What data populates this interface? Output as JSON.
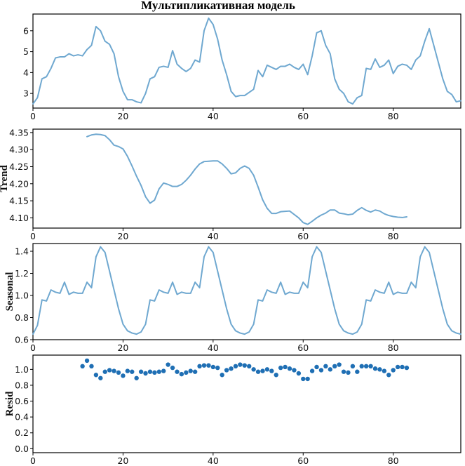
{
  "chart_data": {
    "title": "Мультипликативная модель",
    "type": "line",
    "shared_xlim": [
      0,
      95
    ],
    "xticks": [
      0,
      20,
      40,
      60,
      80
    ],
    "line_color": "#6fa8d0",
    "marker_color": "#1f6fb4",
    "panels": [
      {
        "key": "observed",
        "type": "line",
        "ylabel": "",
        "ylim": [
          2.3,
          6.8
        ],
        "yticks": [
          3,
          4,
          5,
          6
        ],
        "x": [
          0,
          1,
          2,
          3,
          4,
          5,
          6,
          7,
          8,
          9,
          10,
          11,
          12,
          13,
          14,
          15,
          16,
          17,
          18,
          19,
          20,
          21,
          22,
          23,
          24,
          25,
          26,
          27,
          28,
          29,
          30,
          31,
          32,
          33,
          34,
          35,
          36,
          37,
          38,
          39,
          40,
          41,
          42,
          43,
          44,
          45,
          46,
          47,
          48,
          49,
          50,
          51,
          52,
          53,
          54,
          55,
          56,
          57,
          58,
          59,
          60,
          61,
          62,
          63,
          64,
          65,
          66,
          67,
          68,
          69,
          70,
          71,
          72,
          73,
          74,
          75,
          76,
          77,
          78,
          79,
          80,
          81,
          82,
          83,
          84,
          85,
          86,
          87,
          88,
          89,
          90,
          91,
          92,
          93,
          94,
          95
        ],
        "values": [
          2.5,
          2.8,
          3.7,
          3.8,
          4.2,
          4.7,
          4.75,
          4.75,
          4.9,
          4.8,
          4.85,
          4.8,
          5.1,
          5.3,
          6.2,
          6.0,
          5.5,
          5.35,
          4.9,
          3.8,
          3.1,
          2.7,
          2.7,
          2.6,
          2.55,
          3.0,
          3.7,
          3.8,
          4.25,
          4.3,
          4.25,
          5.05,
          4.4,
          4.2,
          4.05,
          4.2,
          4.6,
          4.5,
          6.0,
          6.6,
          6.3,
          5.6,
          4.6,
          3.9,
          3.1,
          2.85,
          2.9,
          2.9,
          3.05,
          3.2,
          4.1,
          3.8,
          4.35,
          4.25,
          4.15,
          4.3,
          4.3,
          4.4,
          4.25,
          4.15,
          4.4,
          3.9,
          4.8,
          5.9,
          6.0,
          5.3,
          4.9,
          3.7,
          3.2,
          3.0,
          2.6,
          2.5,
          2.8,
          2.9,
          4.2,
          4.15,
          4.65,
          4.25,
          4.35,
          4.6,
          3.95,
          4.3,
          4.4,
          4.35,
          4.15,
          4.6,
          4.8,
          5.5,
          6.1,
          5.3,
          4.5,
          3.7,
          3.1,
          2.95,
          2.6,
          2.65
        ]
      },
      {
        "key": "trend",
        "type": "line",
        "ylabel": "Trend",
        "ylim": [
          4.07,
          4.36
        ],
        "yticks": [
          4.1,
          4.15,
          4.2,
          4.25,
          4.3,
          4.35
        ],
        "ytick_labels": [
          "4.10",
          "4.15",
          "4.20",
          "4.25",
          "4.30",
          "4.35"
        ],
        "x": [
          12,
          13,
          14,
          15,
          16,
          17,
          18,
          19,
          20,
          21,
          22,
          23,
          24,
          25,
          26,
          27,
          28,
          29,
          30,
          31,
          32,
          33,
          34,
          35,
          36,
          37,
          38,
          39,
          40,
          41,
          42,
          43,
          44,
          45,
          46,
          47,
          48,
          49,
          50,
          51,
          52,
          53,
          54,
          55,
          56,
          57,
          58,
          59,
          60,
          61,
          62,
          63,
          64,
          65,
          66,
          67,
          68,
          69,
          70,
          71,
          72,
          73,
          74,
          75,
          76,
          77,
          78,
          79,
          80,
          81,
          82,
          83
        ],
        "values": [
          4.338,
          4.343,
          4.345,
          4.344,
          4.341,
          4.329,
          4.313,
          4.309,
          4.302,
          4.28,
          4.252,
          4.222,
          4.195,
          4.162,
          4.143,
          4.152,
          4.185,
          4.202,
          4.198,
          4.192,
          4.192,
          4.198,
          4.21,
          4.225,
          4.243,
          4.258,
          4.265,
          4.266,
          4.267,
          4.267,
          4.258,
          4.245,
          4.229,
          4.232,
          4.245,
          4.252,
          4.245,
          4.225,
          4.19,
          4.153,
          4.128,
          4.113,
          4.113,
          4.118,
          4.119,
          4.12,
          4.11,
          4.1,
          4.086,
          4.081,
          4.09,
          4.1,
          4.108,
          4.114,
          4.123,
          4.123,
          4.114,
          4.112,
          4.109,
          4.111,
          4.122,
          4.13,
          4.122,
          4.117,
          4.123,
          4.12,
          4.112,
          4.107,
          4.104,
          4.102,
          4.101,
          4.103
        ]
      },
      {
        "key": "seasonal",
        "type": "line",
        "ylabel": "Seasonal",
        "ylim": [
          0.6,
          1.47
        ],
        "yticks": [
          0.6,
          0.8,
          1.0,
          1.2,
          1.4
        ],
        "ytick_labels": [
          "0.6",
          "0.8",
          "1.0",
          "1.2",
          "1.4"
        ],
        "x": [
          0,
          1,
          2,
          3,
          4,
          5,
          6,
          7,
          8,
          9,
          10,
          11,
          12,
          13,
          14,
          15,
          16,
          17,
          18,
          19,
          20,
          21,
          22,
          23,
          24,
          25,
          26,
          27,
          28,
          29,
          30,
          31,
          32,
          33,
          34,
          35,
          36,
          37,
          38,
          39,
          40,
          41,
          42,
          43,
          44,
          45,
          46,
          47,
          48,
          49,
          50,
          51,
          52,
          53,
          54,
          55,
          56,
          57,
          58,
          59,
          60,
          61,
          62,
          63,
          64,
          65,
          66,
          67,
          68,
          69,
          70,
          71,
          72,
          73,
          74,
          75,
          76,
          77,
          78,
          79,
          80,
          81,
          82,
          83,
          84,
          85,
          86,
          87,
          88,
          89,
          90,
          91,
          92,
          93,
          94,
          95
        ],
        "values": [
          0.65,
          0.73,
          0.96,
          0.95,
          1.05,
          1.03,
          1.02,
          1.12,
          1.01,
          1.03,
          1.02,
          1.02,
          1.12,
          1.07,
          1.35,
          1.44,
          1.39,
          1.22,
          1.05,
          0.88,
          0.74,
          0.68,
          0.66,
          0.65,
          0.67,
          0.74,
          0.96,
          0.95,
          1.05,
          1.03,
          1.02,
          1.12,
          1.01,
          1.03,
          1.02,
          1.02,
          1.12,
          1.07,
          1.35,
          1.44,
          1.39,
          1.22,
          1.05,
          0.88,
          0.74,
          0.68,
          0.66,
          0.65,
          0.67,
          0.74,
          0.96,
          0.95,
          1.05,
          1.03,
          1.02,
          1.12,
          1.01,
          1.03,
          1.02,
          1.02,
          1.12,
          1.07,
          1.35,
          1.44,
          1.39,
          1.22,
          1.05,
          0.88,
          0.74,
          0.68,
          0.66,
          0.65,
          0.67,
          0.74,
          0.96,
          0.95,
          1.05,
          1.03,
          1.02,
          1.12,
          1.01,
          1.03,
          1.02,
          1.02,
          1.12,
          1.07,
          1.35,
          1.44,
          1.39,
          1.22,
          1.05,
          0.88,
          0.74,
          0.68,
          0.66,
          0.65
        ]
      },
      {
        "key": "resid",
        "type": "scatter",
        "ylabel": "Resid",
        "ylim": [
          -0.05,
          1.18
        ],
        "yticks": [
          0.0,
          0.2,
          0.4,
          0.6,
          0.8,
          1.0
        ],
        "ytick_labels": [
          "0.0",
          "0.2",
          "0.4",
          "0.6",
          "0.8",
          "1.0"
        ],
        "x": [
          11,
          12,
          13,
          14,
          15,
          16,
          17,
          18,
          19,
          20,
          21,
          22,
          23,
          24,
          25,
          26,
          27,
          28,
          29,
          30,
          31,
          32,
          33,
          34,
          35,
          36,
          37,
          38,
          39,
          40,
          41,
          42,
          43,
          44,
          45,
          46,
          47,
          48,
          49,
          50,
          51,
          52,
          53,
          54,
          55,
          56,
          57,
          58,
          59,
          60,
          61,
          62,
          63,
          64,
          65,
          66,
          67,
          68,
          69,
          70,
          71,
          72,
          73,
          74,
          75,
          76,
          77,
          78,
          79,
          80,
          81,
          82,
          83
        ],
        "values": [
          1.04,
          1.11,
          1.04,
          0.93,
          0.89,
          0.97,
          0.99,
          0.98,
          0.96,
          0.92,
          0.98,
          0.97,
          0.89,
          0.97,
          0.95,
          0.97,
          0.96,
          0.97,
          0.98,
          1.06,
          1.02,
          0.97,
          0.94,
          0.96,
          0.98,
          0.97,
          1.04,
          1.05,
          1.05,
          1.03,
          1.02,
          0.93,
          0.99,
          1.01,
          1.04,
          1.06,
          1.05,
          1.04,
          1.0,
          0.97,
          0.98,
          1.0,
          0.98,
          0.93,
          1.02,
          1.03,
          1.01,
          0.99,
          0.95,
          0.88,
          0.88,
          0.98,
          1.03,
          0.99,
          1.04,
          1.0,
          1.04,
          1.06,
          0.97,
          0.96,
          1.04,
          0.97,
          1.04,
          1.04,
          1.04,
          1.01,
          1.0,
          0.98,
          0.93,
          0.99,
          1.03,
          1.03,
          1.02
        ]
      }
    ]
  }
}
